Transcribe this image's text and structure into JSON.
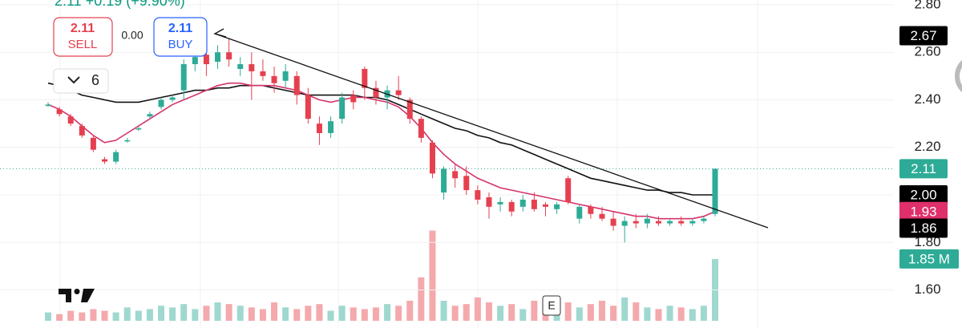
{
  "chart_data": {
    "type": "candlestick",
    "last_quote": "2.11 +0.19 (+9.90%)",
    "sell": {
      "price": "2.11",
      "label": "SELL"
    },
    "spread": "0.00",
    "buy": {
      "price": "2.11",
      "label": "BUY"
    },
    "interval": "6",
    "event_marker": "E",
    "ylim": [
      1.44,
      2.82
    ],
    "yticks": [
      {
        "value": 2.8,
        "label": "2.80"
      },
      {
        "value": 2.6,
        "label": "2.60"
      },
      {
        "value": 2.4,
        "label": "2.40"
      },
      {
        "value": 2.2,
        "label": "2.20"
      },
      {
        "value": 2.0,
        "label": "2.00"
      },
      {
        "value": 1.8,
        "label": "1.80"
      },
      {
        "value": 1.6,
        "label": "1.60"
      }
    ],
    "grid": true,
    "up_color": "#2eab96",
    "down_color": "#e5404f",
    "volume_up_color": "#9fd8cf",
    "volume_down_color": "#f4a9ad",
    "candles": {
      "open": [
        2.38,
        2.36,
        2.33,
        2.29,
        2.24,
        2.15,
        2.14,
        2.23,
        2.28,
        2.33,
        2.37,
        2.4,
        2.44,
        2.55,
        2.59,
        2.56,
        2.6,
        2.53,
        2.55,
        2.52,
        2.5,
        2.48,
        2.5,
        2.42,
        2.3,
        2.26,
        2.32,
        2.42,
        2.53,
        2.45,
        2.41,
        2.44,
        2.4,
        2.32,
        2.22,
        2.01,
        2.1,
        2.08,
        2.02,
        1.99,
        1.96,
        1.97,
        1.95,
        1.98,
        1.96,
        1.94,
        2.07,
        1.9,
        1.95,
        1.92,
        1.9,
        1.87,
        1.89,
        1.88,
        1.89,
        1.88,
        1.89,
        1.88,
        1.89,
        1.92
      ],
      "high": [
        2.39,
        2.37,
        2.34,
        2.3,
        2.25,
        2.16,
        2.19,
        2.24,
        2.29,
        2.35,
        2.41,
        2.42,
        2.57,
        2.62,
        2.62,
        2.63,
        2.66,
        2.58,
        2.6,
        2.57,
        2.54,
        2.55,
        2.52,
        2.45,
        2.33,
        2.33,
        2.43,
        2.44,
        2.54,
        2.48,
        2.46,
        2.5,
        2.41,
        2.33,
        2.23,
        2.12,
        2.13,
        2.12,
        2.04,
        2.01,
        1.99,
        1.98,
        2.0,
        2.01,
        1.97,
        1.97,
        2.08,
        1.96,
        1.96,
        1.95,
        1.93,
        1.91,
        1.92,
        1.92,
        1.91,
        1.9,
        1.91,
        1.9,
        1.91,
        2.11
      ],
      "low": [
        2.37,
        2.33,
        2.29,
        2.24,
        2.18,
        2.13,
        2.13,
        2.22,
        2.27,
        2.32,
        2.36,
        2.39,
        2.4,
        2.52,
        2.5,
        2.53,
        2.54,
        2.5,
        2.4,
        2.48,
        2.43,
        2.45,
        2.38,
        2.3,
        2.21,
        2.24,
        2.3,
        2.36,
        2.4,
        2.38,
        2.36,
        2.4,
        2.3,
        2.22,
        2.07,
        1.98,
        2.03,
        2.0,
        1.96,
        1.9,
        1.93,
        1.91,
        1.93,
        1.93,
        1.91,
        1.92,
        1.96,
        1.88,
        1.9,
        1.89,
        1.85,
        1.8,
        1.86,
        1.86,
        1.87,
        1.87,
        1.87,
        1.87,
        1.88,
        1.91
      ],
      "close": [
        2.38,
        2.34,
        2.3,
        2.25,
        2.19,
        2.14,
        2.18,
        2.23,
        2.28,
        2.34,
        2.4,
        2.41,
        2.55,
        2.58,
        2.55,
        2.6,
        2.57,
        2.55,
        2.52,
        2.5,
        2.47,
        2.52,
        2.42,
        2.32,
        2.26,
        2.31,
        2.41,
        2.39,
        2.45,
        2.41,
        2.44,
        2.42,
        2.32,
        2.24,
        2.09,
        2.11,
        2.07,
        2.02,
        1.98,
        1.95,
        1.97,
        1.93,
        1.98,
        1.94,
        1.95,
        1.96,
        1.97,
        1.95,
        1.92,
        1.9,
        1.87,
        1.89,
        1.88,
        1.9,
        1.88,
        1.89,
        1.88,
        1.89,
        1.9,
        2.11
      ]
    },
    "volume": [
      0.25,
      0.2,
      0.3,
      0.25,
      0.35,
      0.3,
      0.25,
      0.4,
      0.3,
      0.35,
      0.45,
      0.4,
      0.5,
      0.35,
      0.45,
      0.55,
      0.5,
      0.45,
      0.4,
      0.35,
      0.55,
      0.4,
      0.35,
      0.45,
      0.5,
      0.3,
      0.45,
      0.4,
      0.35,
      0.4,
      0.5,
      0.45,
      0.6,
      1.3,
      2.7,
      0.6,
      0.45,
      0.5,
      0.7,
      0.55,
      0.45,
      0.5,
      0.35,
      0.6,
      0.4,
      0.45,
      0.55,
      0.4,
      0.5,
      0.6,
      0.45,
      0.7,
      0.55,
      0.4,
      0.35,
      0.45,
      0.4,
      0.35,
      0.45,
      1.85
    ],
    "volume_ylim": [
      0,
      9.6
    ],
    "volume_label": {
      "value": 1.85,
      "label": "1.85 M",
      "color": "#2eab96"
    },
    "ma_lines": [
      {
        "color": "#111111",
        "values": [
          2.47,
          2.46,
          2.44,
          2.42,
          2.41,
          2.4,
          2.39,
          2.39,
          2.39,
          2.4,
          2.41,
          2.42,
          2.43,
          2.44,
          2.44,
          2.45,
          2.45,
          2.46,
          2.46,
          2.46,
          2.45,
          2.44,
          2.43,
          2.42,
          2.42,
          2.42,
          2.42,
          2.42,
          2.41,
          2.41,
          2.4,
          2.38,
          2.36,
          2.34,
          2.32,
          2.3,
          2.28,
          2.27,
          2.25,
          2.24,
          2.22,
          2.21,
          2.19,
          2.17,
          2.15,
          2.13,
          2.11,
          2.09,
          2.07,
          2.06,
          2.05,
          2.04,
          2.03,
          2.02,
          2.02,
          2.01,
          2.01,
          2.0,
          2.0,
          2.0
        ]
      },
      {
        "color": "#d6336c",
        "values": [
          2.38,
          2.36,
          2.33,
          2.29,
          2.25,
          2.22,
          2.23,
          2.26,
          2.29,
          2.32,
          2.35,
          2.38,
          2.4,
          2.42,
          2.44,
          2.46,
          2.47,
          2.47,
          2.46,
          2.46,
          2.46,
          2.45,
          2.44,
          2.42,
          2.4,
          2.39,
          2.4,
          2.41,
          2.41,
          2.4,
          2.39,
          2.37,
          2.33,
          2.28,
          2.22,
          2.17,
          2.13,
          2.1,
          2.07,
          2.05,
          2.03,
          2.02,
          2.01,
          2.0,
          1.99,
          1.98,
          1.97,
          1.96,
          1.95,
          1.94,
          1.93,
          1.92,
          1.91,
          1.91,
          1.9,
          1.9,
          1.9,
          1.9,
          1.91,
          1.93
        ]
      }
    ],
    "last_price_line": 2.11,
    "price_labels": [
      {
        "value": 2.67,
        "label": "2.67",
        "color": "#000000"
      },
      {
        "value": 2.11,
        "label": "2.11",
        "color": "#2eab96"
      },
      {
        "value": 2.0,
        "label": "2.00",
        "color": "#000000"
      },
      {
        "value": 1.93,
        "label": "1.93",
        "color": "#e0306b"
      },
      {
        "value": 1.86,
        "label": "1.86",
        "color": "#000000"
      }
    ]
  }
}
